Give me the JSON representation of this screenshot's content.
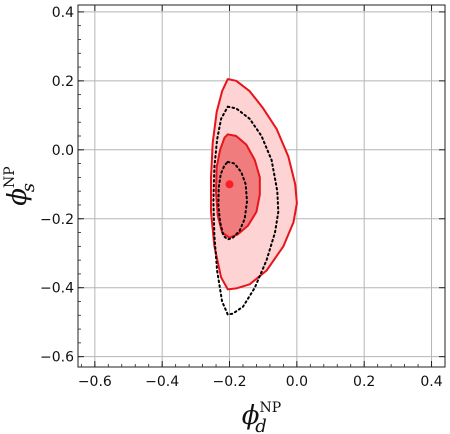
{
  "chart_data": {
    "type": "contour",
    "xlim": [
      -0.65,
      0.44
    ],
    "ylim": [
      -0.63,
      0.42
    ],
    "x_ticks": [
      -0.6,
      -0.4,
      -0.2,
      0.0,
      0.2,
      0.4
    ],
    "y_ticks": [
      -0.6,
      -0.4,
      -0.2,
      0.0,
      0.2,
      0.4
    ],
    "x_tick_labels": [
      "−0.6",
      "−0.4",
      "−0.2",
      "0.0",
      "0.2",
      "0.4"
    ],
    "y_tick_labels": [
      "−0.6",
      "−0.4",
      "−0.2",
      "0.0",
      "0.2",
      "0.4"
    ],
    "grid": true,
    "xlabel": {
      "symbol": "ϕ",
      "sup": "NP",
      "sub": "d"
    },
    "ylabel": {
      "symbol": "ϕ",
      "sup": "NP",
      "sub": "s"
    },
    "best_fit": {
      "x": -0.2,
      "y": -0.1
    },
    "regions": [
      {
        "style": "filled-red-outer",
        "fill": "#fdd3d3",
        "stroke": "#e8141c",
        "points": [
          [
            -0.205,
            0.205
          ],
          [
            -0.18,
            0.2
          ],
          [
            -0.14,
            0.17
          ],
          [
            -0.1,
            0.12
          ],
          [
            -0.06,
            0.06
          ],
          [
            -0.025,
            -0.02
          ],
          [
            -0.005,
            -0.1
          ],
          [
            0.0,
            -0.155
          ],
          [
            -0.01,
            -0.21
          ],
          [
            -0.04,
            -0.28
          ],
          [
            -0.09,
            -0.35
          ],
          [
            -0.14,
            -0.39
          ],
          [
            -0.18,
            -0.402
          ],
          [
            -0.205,
            -0.405
          ],
          [
            -0.225,
            -0.37
          ],
          [
            -0.245,
            -0.28
          ],
          [
            -0.255,
            -0.18
          ],
          [
            -0.255,
            -0.08
          ],
          [
            -0.25,
            0.02
          ],
          [
            -0.238,
            0.11
          ],
          [
            -0.222,
            0.17
          ]
        ]
      },
      {
        "style": "filled-red-inner",
        "fill": "#f07c7e",
        "stroke": "#e8141c",
        "points": [
          [
            -0.205,
            0.045
          ],
          [
            -0.18,
            0.04
          ],
          [
            -0.15,
            0.015
          ],
          [
            -0.125,
            -0.03
          ],
          [
            -0.11,
            -0.08
          ],
          [
            -0.11,
            -0.13
          ],
          [
            -0.12,
            -0.18
          ],
          [
            -0.145,
            -0.22
          ],
          [
            -0.175,
            -0.245
          ],
          [
            -0.2,
            -0.255
          ],
          [
            -0.222,
            -0.24
          ],
          [
            -0.235,
            -0.19
          ],
          [
            -0.24,
            -0.12
          ],
          [
            -0.238,
            -0.05
          ],
          [
            -0.228,
            0.0
          ],
          [
            -0.215,
            0.035
          ]
        ]
      },
      {
        "style": "dotted-outer",
        "stroke": "#000000",
        "points": [
          [
            -0.205,
            0.125
          ],
          [
            -0.18,
            0.12
          ],
          [
            -0.14,
            0.09
          ],
          [
            -0.105,
            0.04
          ],
          [
            -0.075,
            -0.03
          ],
          [
            -0.058,
            -0.12
          ],
          [
            -0.055,
            -0.18
          ],
          [
            -0.065,
            -0.24
          ],
          [
            -0.09,
            -0.32
          ],
          [
            -0.125,
            -0.4
          ],
          [
            -0.16,
            -0.455
          ],
          [
            -0.19,
            -0.475
          ],
          [
            -0.205,
            -0.478
          ],
          [
            -0.222,
            -0.44
          ],
          [
            -0.237,
            -0.35
          ],
          [
            -0.245,
            -0.25
          ],
          [
            -0.248,
            -0.15
          ],
          [
            -0.245,
            -0.05
          ],
          [
            -0.237,
            0.03
          ],
          [
            -0.225,
            0.09
          ]
        ]
      },
      {
        "style": "dotted-inner",
        "stroke": "#000000",
        "points": [
          [
            -0.205,
            -0.035
          ],
          [
            -0.185,
            -0.04
          ],
          [
            -0.165,
            -0.065
          ],
          [
            -0.152,
            -0.1
          ],
          [
            -0.148,
            -0.15
          ],
          [
            -0.155,
            -0.2
          ],
          [
            -0.17,
            -0.235
          ],
          [
            -0.19,
            -0.255
          ],
          [
            -0.205,
            -0.26
          ],
          [
            -0.218,
            -0.25
          ],
          [
            -0.228,
            -0.21
          ],
          [
            -0.233,
            -0.16
          ],
          [
            -0.232,
            -0.11
          ],
          [
            -0.226,
            -0.07
          ],
          [
            -0.215,
            -0.045
          ]
        ]
      }
    ]
  }
}
